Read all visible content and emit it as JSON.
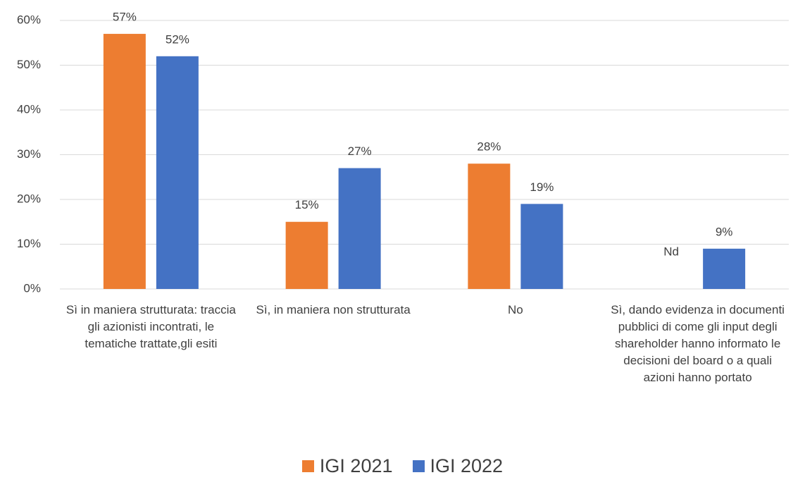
{
  "chart_data": {
    "type": "bar",
    "categories": [
      "Sì in maniera strutturata: traccia gli azionisti incontrati, le tematiche trattate,gli esiti",
      "Sì, in maniera non strutturata",
      "No",
      "Sì, dando evidenza in documenti pubblici di come gli input degli shareholder hanno informato le decisioni del board o a quali azioni hanno portato"
    ],
    "series": [
      {
        "name": "IGI 2021",
        "color": "#ed7d31",
        "values": [
          57,
          15,
          28,
          null
        ],
        "value_labels": [
          "57%",
          "15%",
          "28%",
          "Nd"
        ]
      },
      {
        "name": "IGI 2022",
        "color": "#4472c4",
        "values": [
          52,
          27,
          19,
          9
        ],
        "value_labels": [
          "52%",
          "27%",
          "19%",
          "9%"
        ]
      }
    ],
    "ylim": [
      0,
      60
    ],
    "yticks": [
      {
        "value": 0,
        "label": "0%"
      },
      {
        "value": 10,
        "label": "10%"
      },
      {
        "value": 20,
        "label": "20%"
      },
      {
        "value": 30,
        "label": "30%"
      },
      {
        "value": 40,
        "label": "40%"
      },
      {
        "value": 50,
        "label": "50%"
      },
      {
        "value": 60,
        "label": "60%"
      }
    ],
    "grid": true,
    "legend": "bottom"
  }
}
